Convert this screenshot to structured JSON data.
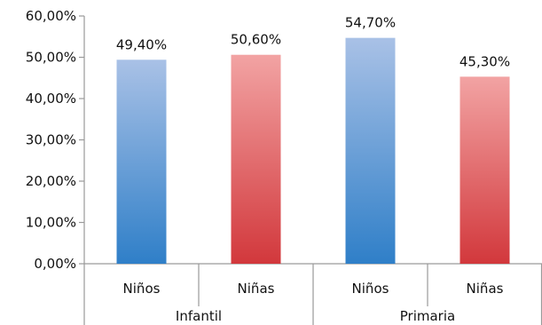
{
  "chart_data": {
    "type": "bar",
    "title": "",
    "xlabel": "",
    "ylabel": "",
    "ylim": [
      0,
      60
    ],
    "yticks": [
      0,
      10,
      20,
      30,
      40,
      50,
      60
    ],
    "ytick_labels": [
      "0,00%",
      "10,00%",
      "20,00%",
      "30,00%",
      "40,00%",
      "50,00%",
      "60,00%"
    ],
    "grid": false,
    "legend": "none",
    "groups": [
      "Infantil",
      "Primaria"
    ],
    "categories": [
      "Niños",
      "Niñas",
      "Niños",
      "Niñas"
    ],
    "category_group": [
      0,
      0,
      1,
      1
    ],
    "values": [
      49.4,
      50.6,
      54.7,
      45.3
    ],
    "data_labels": [
      "49,40%",
      "50,60%",
      "54,70%",
      "45,30%"
    ],
    "bar_color_keys": [
      "blue",
      "red",
      "blue",
      "red"
    ]
  },
  "colors": {
    "blue_top": "#a9c1e6",
    "blue_bottom": "#2f7fc8",
    "red_top": "#f2a3a3",
    "red_bottom": "#d2383c",
    "axis": "#9a9a9a"
  }
}
